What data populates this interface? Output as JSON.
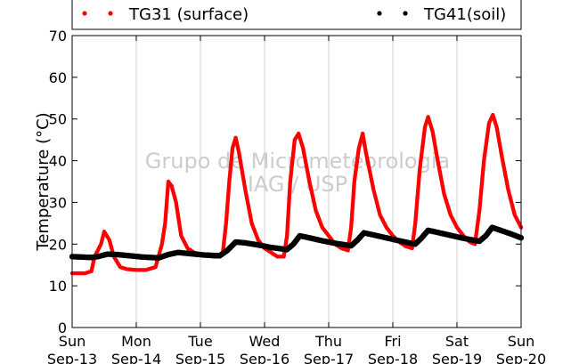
{
  "chart_data": {
    "type": "scatter",
    "title": "",
    "ylabel": "Temperature (°C)",
    "xlabel": "",
    "ylim": [
      0,
      70
    ],
    "yticks": [
      0,
      10,
      20,
      30,
      40,
      50,
      60,
      70
    ],
    "xlim_days": [
      "Sun Sep-13",
      "Sun Sep-20"
    ],
    "xtick_days": [
      "Sun",
      "Mon",
      "Tue",
      "Wed",
      "Thu",
      "Fri",
      "Sat",
      "Sun"
    ],
    "xtick_dates": [
      "Sep-13",
      "Sep-14",
      "Sep-15",
      "Sep-16",
      "Sep-17",
      "Sep-18",
      "Sep-19",
      "Sep-20"
    ],
    "watermark": [
      "Grupo de Micrometeorologia",
      "IAG / USP"
    ],
    "grid": "vertical",
    "legend_position": "top",
    "series": [
      {
        "name": "TG31 (surface)",
        "color": "#ff0000",
        "points": [
          [
            0.0,
            13
          ],
          [
            0.2,
            13
          ],
          [
            0.3,
            13.5
          ],
          [
            0.35,
            17
          ],
          [
            0.45,
            20
          ],
          [
            0.5,
            23
          ],
          [
            0.58,
            21
          ],
          [
            0.65,
            17
          ],
          [
            0.75,
            14.5
          ],
          [
            0.85,
            14
          ],
          [
            1.0,
            13.8
          ],
          [
            1.15,
            13.8
          ],
          [
            1.3,
            14.5
          ],
          [
            1.4,
            20
          ],
          [
            1.45,
            25
          ],
          [
            1.5,
            35
          ],
          [
            1.55,
            34
          ],
          [
            1.62,
            30
          ],
          [
            1.7,
            22
          ],
          [
            1.8,
            19
          ],
          [
            1.9,
            18
          ],
          [
            2.0,
            17.5
          ],
          [
            2.2,
            17
          ],
          [
            2.3,
            17
          ],
          [
            2.35,
            18
          ],
          [
            2.4,
            25
          ],
          [
            2.45,
            35
          ],
          [
            2.5,
            43
          ],
          [
            2.55,
            45.5
          ],
          [
            2.6,
            42
          ],
          [
            2.7,
            33
          ],
          [
            2.8,
            25
          ],
          [
            2.9,
            21
          ],
          [
            3.0,
            19
          ],
          [
            3.1,
            18
          ],
          [
            3.2,
            17
          ],
          [
            3.3,
            17
          ],
          [
            3.35,
            22
          ],
          [
            3.4,
            35
          ],
          [
            3.47,
            45
          ],
          [
            3.53,
            46.5
          ],
          [
            3.6,
            43
          ],
          [
            3.7,
            35
          ],
          [
            3.8,
            28
          ],
          [
            3.9,
            24
          ],
          [
            4.0,
            22
          ],
          [
            4.1,
            20
          ],
          [
            4.2,
            19
          ],
          [
            4.3,
            18.5
          ],
          [
            4.35,
            24
          ],
          [
            4.4,
            35
          ],
          [
            4.47,
            43
          ],
          [
            4.53,
            46.5
          ],
          [
            4.58,
            42
          ],
          [
            4.7,
            33
          ],
          [
            4.8,
            27
          ],
          [
            4.9,
            24
          ],
          [
            5.0,
            22
          ],
          [
            5.1,
            20.5
          ],
          [
            5.2,
            19.5
          ],
          [
            5.3,
            19
          ],
          [
            5.35,
            25
          ],
          [
            5.42,
            38
          ],
          [
            5.5,
            48
          ],
          [
            5.55,
            50.5
          ],
          [
            5.62,
            47
          ],
          [
            5.7,
            40
          ],
          [
            5.8,
            32
          ],
          [
            5.9,
            27
          ],
          [
            6.0,
            24
          ],
          [
            6.1,
            22
          ],
          [
            6.2,
            20.5
          ],
          [
            6.28,
            20
          ],
          [
            6.35,
            28
          ],
          [
            6.42,
            40
          ],
          [
            6.5,
            49
          ],
          [
            6.56,
            51
          ],
          [
            6.62,
            48
          ],
          [
            6.7,
            41
          ],
          [
            6.8,
            33
          ],
          [
            6.9,
            27
          ],
          [
            7.0,
            24
          ]
        ]
      },
      {
        "name": "TG41(soil)",
        "color": "#000000",
        "points": [
          [
            0.0,
            17
          ],
          [
            0.3,
            16.8
          ],
          [
            0.4,
            17
          ],
          [
            0.55,
            17.6
          ],
          [
            0.7,
            17.5
          ],
          [
            0.9,
            17.2
          ],
          [
            1.1,
            16.9
          ],
          [
            1.35,
            16.7
          ],
          [
            1.5,
            17.5
          ],
          [
            1.65,
            18
          ],
          [
            1.85,
            17.7
          ],
          [
            2.05,
            17.4
          ],
          [
            2.3,
            17.2
          ],
          [
            2.42,
            18.5
          ],
          [
            2.55,
            20.5
          ],
          [
            2.7,
            20.3
          ],
          [
            2.9,
            19.8
          ],
          [
            3.1,
            19.2
          ],
          [
            3.35,
            18.7
          ],
          [
            3.45,
            20
          ],
          [
            3.55,
            22
          ],
          [
            3.7,
            21.5
          ],
          [
            3.9,
            20.8
          ],
          [
            4.1,
            20.2
          ],
          [
            4.35,
            19.6
          ],
          [
            4.45,
            21
          ],
          [
            4.55,
            22.7
          ],
          [
            4.7,
            22.2
          ],
          [
            4.9,
            21.5
          ],
          [
            5.1,
            20.8
          ],
          [
            5.35,
            20
          ],
          [
            5.45,
            21.5
          ],
          [
            5.55,
            23.3
          ],
          [
            5.7,
            22.8
          ],
          [
            5.9,
            22.1
          ],
          [
            6.1,
            21.4
          ],
          [
            6.35,
            20.7
          ],
          [
            6.45,
            22
          ],
          [
            6.55,
            24
          ],
          [
            6.7,
            23.2
          ],
          [
            6.85,
            22.4
          ],
          [
            7.0,
            21.5
          ]
        ]
      }
    ]
  }
}
